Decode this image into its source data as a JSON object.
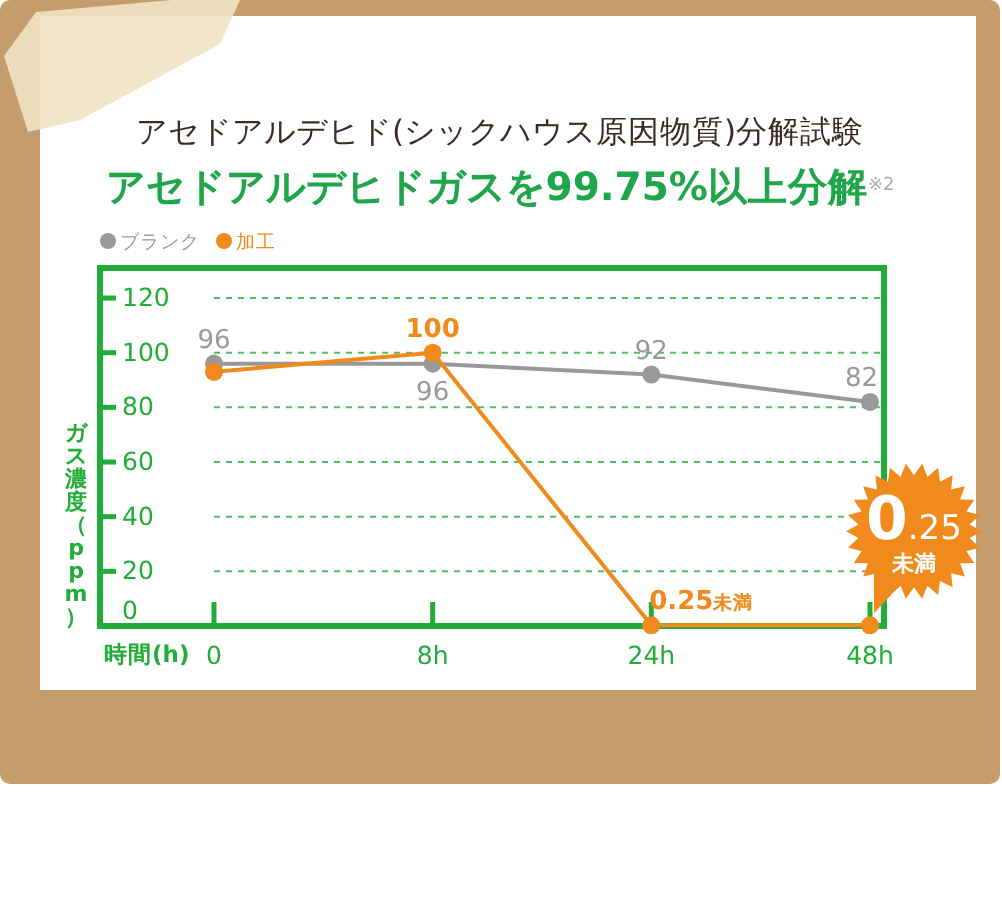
{
  "chart_data": {
    "type": "line",
    "title": "アセドアルデヒド(シックハウス原因物質)分解試験",
    "subtitle": "アセドアルデヒドガスを99.75%以上分解$^{※2}$",
    "xlabel": "時間(h)",
    "ylabel": "ガス濃度（ppm）",
    "categories": [
      "0",
      "8h",
      "24h",
      "48h"
    ],
    "series": [
      {
        "name": "ブランク",
        "color": "#999999",
        "values": [
          96,
          96,
          92,
          82
        ],
        "value_labels": [
          "96",
          "96",
          "92",
          "82"
        ]
      },
      {
        "name": "加工",
        "color": "#f08a1c",
        "values": [
          93,
          100,
          0.25,
          0.25
        ],
        "value_labels": [
          null,
          "100",
          "0.25未満",
          "0.25未満"
        ]
      }
    ],
    "ylim": [
      0,
      131
    ],
    "yticks": [
      0,
      20,
      40,
      60,
      80,
      100,
      120
    ],
    "grid": "y",
    "legend": "top left",
    "marker": "circle",
    "line_style": "solid"
  }
}
